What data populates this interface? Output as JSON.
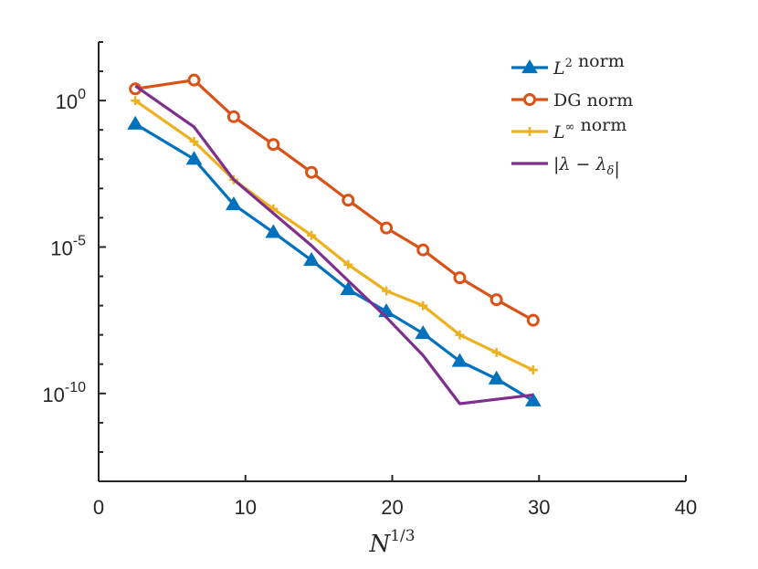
{
  "chart_data": {
    "type": "line",
    "xlabel": {
      "base": "N",
      "sup": "1/3"
    },
    "x_ticks": [
      0,
      10,
      20,
      30,
      40
    ],
    "xlim": [
      0,
      40
    ],
    "y_scale": "log",
    "ylim_log10": [
      -13,
      2
    ],
    "y_ticks": [
      {
        "exp": 0,
        "base": "10",
        "sup": "0"
      },
      {
        "exp": -5,
        "base": "10",
        "sup": "-5"
      },
      {
        "exp": -10,
        "base": "10",
        "sup": "-10"
      }
    ],
    "grid": false,
    "legend_position": "top-right",
    "series": [
      {
        "key": "l2",
        "name": "L² norm",
        "color": "#0072BD",
        "marker": "triangle",
        "x": [
          2.5,
          6.5,
          9.2,
          11.9,
          14.5,
          17.0,
          19.6,
          22.1,
          24.6,
          27.1,
          29.6
        ],
        "log10_y": [
          -0.8,
          -2.0,
          -3.55,
          -4.5,
          -5.45,
          -6.45,
          -7.2,
          -7.95,
          -8.9,
          -9.5,
          -10.25
        ]
      },
      {
        "key": "dg",
        "name": "DG norm",
        "color": "#D95319",
        "marker": "circle",
        "x": [
          2.5,
          6.5,
          9.2,
          11.9,
          14.5,
          17.0,
          19.6,
          22.1,
          24.6,
          27.1,
          29.6
        ],
        "log10_y": [
          0.4,
          0.7,
          -0.55,
          -1.5,
          -2.45,
          -3.4,
          -4.35,
          -5.1,
          -6.05,
          -6.8,
          -7.5
        ]
      },
      {
        "key": "linf",
        "name": "L∞ norm",
        "color": "#EDB120",
        "marker": "plus",
        "x": [
          2.5,
          6.5,
          9.2,
          11.9,
          14.5,
          17.0,
          19.6,
          22.1,
          24.6,
          27.1,
          29.6
        ],
        "log10_y": [
          0.0,
          -1.4,
          -2.7,
          -3.7,
          -4.6,
          -5.6,
          -6.5,
          -7.0,
          -8.0,
          -8.6,
          -9.2
        ]
      },
      {
        "key": "lambda",
        "name": "|λ − λδ|",
        "color": "#7E2F8E",
        "marker": "none",
        "x": [
          2.5,
          6.5,
          9.2,
          11.9,
          14.5,
          17.0,
          19.6,
          22.1,
          24.6,
          27.1,
          29.6
        ],
        "log10_y": [
          0.5,
          -0.9,
          -2.7,
          -3.85,
          -4.95,
          -6.15,
          -7.4,
          -8.7,
          -10.35,
          -10.2,
          -10.05
        ]
      }
    ]
  }
}
